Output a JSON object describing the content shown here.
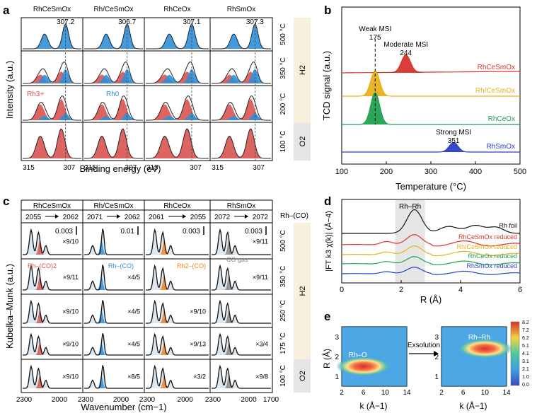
{
  "colors": {
    "rh3": "#d9534f",
    "rh0": "#2f8fd8",
    "band_orange": "#f0831e",
    "band_light": "#d8e4ee",
    "strip": "#f7f0dc",
    "strip_gray": "#e6e6e6",
    "tpr": [
      "#d9342b",
      "#e8b01b",
      "#22a152",
      "#2a3fc7"
    ]
  },
  "panel_a": {
    "letter": "a",
    "columns": [
      "RhCeSmOx",
      "Rh/CeSmOx",
      "RhCeOx",
      "RhSmOx"
    ],
    "rows": [
      "500 °C",
      "350 °C",
      "200 °C",
      "100 °C"
    ],
    "peaks": [
      "307.2",
      "306.7",
      "307.1",
      "307.3"
    ],
    "label_rh3": "Rh3+",
    "label_rh0": "Rh0",
    "gas_h2": "H2",
    "gas_o2": "O2",
    "ticks": [
      "315",
      "307",
      "315",
      "307",
      "315",
      "307",
      "315",
      "307"
    ],
    "xlabel": "Binding energy (eV)",
    "ylabel": "Intensity (a.u.)"
  },
  "panel_b": {
    "letter": "b",
    "chart_data": {
      "type": "line",
      "title": "",
      "xlabel": "Temperature (°C)",
      "ylabel": "TCD signal (a.u.)",
      "xlim": [
        100,
        500
      ],
      "xticks": [
        "100",
        "200",
        "300",
        "400",
        "500"
      ],
      "series": [
        {
          "name": "RhCeSmOx",
          "peak_temperature": 244,
          "peak_height": 0.55
        },
        {
          "name": "Rh/CeSmOx",
          "peak_temperature": 175,
          "peak_height": 0.8
        },
        {
          "name": "RhCeOx",
          "peak_temperature": 175,
          "peak_height": 1.0
        },
        {
          "name": "RhSmOx",
          "peak_temperature": 351,
          "peak_height": 0.3
        }
      ],
      "annotations": {
        "weak_label": "Weak MSI",
        "weak_value": "175",
        "moderate_label": "Moderate MSI",
        "moderate_value": "244",
        "strong_label": "Strong MSI",
        "strong_value": "351"
      }
    }
  },
  "panel_c": {
    "letter": "c",
    "columns": [
      "RhCeSmOx",
      "Rh/CeSmOx",
      "RhCeOx",
      "RhSmOx"
    ],
    "corner": "Rh–(CO)",
    "shifts": [
      "2055",
      "2062",
      "2071",
      "2062",
      "2061",
      "2055",
      "2072",
      "2072"
    ],
    "scales": [
      "0.003",
      "0.01",
      "0.003",
      "0.003"
    ],
    "rows": [
      "500 °C",
      "350 °C",
      "250 °C",
      "175 °C",
      "100 °C"
    ],
    "multipliers": [
      [
        "×9/10",
        "",
        "",
        "×9/11"
      ],
      [
        "×9/11",
        "×4/5",
        "",
        "×9/11"
      ],
      [
        "×9/10",
        "×4/5",
        "×9/10",
        ""
      ],
      [
        "×9/10",
        "×4/5",
        "×9/13",
        "×3/4"
      ],
      [
        "×9/10",
        "×8/5",
        "×3/2",
        "×9/8"
      ]
    ],
    "label_rh_co2": "Rh–(CO)2",
    "label_rh_co": "Rh–(CO)",
    "label_rh2_co": "Rh2–(CO)",
    "label_co_gas": "CO gas",
    "gas_h2": "H2",
    "gas_o2": "O2",
    "ticks": [
      "2300",
      "2000",
      "2300",
      "2000",
      "2300",
      "2000",
      "2300",
      "2000",
      "1700"
    ],
    "xlabel": "Wavenumber (cm−1)",
    "ylabel": "Kubelka–Munk (a.u.)"
  },
  "panel_d": {
    "letter": "d",
    "chart_data": {
      "type": "line",
      "xlabel": "R (Å)",
      "ylabel": "|FT k3 χ(k)| (Å−4)",
      "xlim": [
        0,
        6
      ],
      "xticks": [
        "0",
        "2",
        "4",
        "6"
      ],
      "highlight_label": "Rh–Rh",
      "series": [
        {
          "name": "Rh foil"
        },
        {
          "name": "RhCeSmOx reduced"
        },
        {
          "name": "Rh/CeSmOx reduced"
        },
        {
          "name": "RhCeOx reduced"
        },
        {
          "name": "RhSmOx reduced"
        }
      ]
    }
  },
  "panel_e": {
    "letter": "e",
    "chart_data": {
      "type": "heatmap",
      "xlabel": "k (Å−1)",
      "ylabel": "R (Å)",
      "xticks": [
        "2",
        "6",
        "10",
        "14"
      ],
      "yticks": [
        "1",
        "2",
        "3"
      ],
      "maps": [
        {
          "label": "Rh–O",
          "k_center": 6,
          "R_center": 1.5
        },
        {
          "label": "Rh–Rh",
          "k_center": 10,
          "R_center": 2.4
        }
      ],
      "arrow_label": "Exsolution",
      "colorbar": [
        "8.2",
        "7.2",
        "6.2",
        "5.1",
        "4.1",
        "3.1",
        "2.1",
        "1.0",
        "0.0"
      ]
    }
  }
}
